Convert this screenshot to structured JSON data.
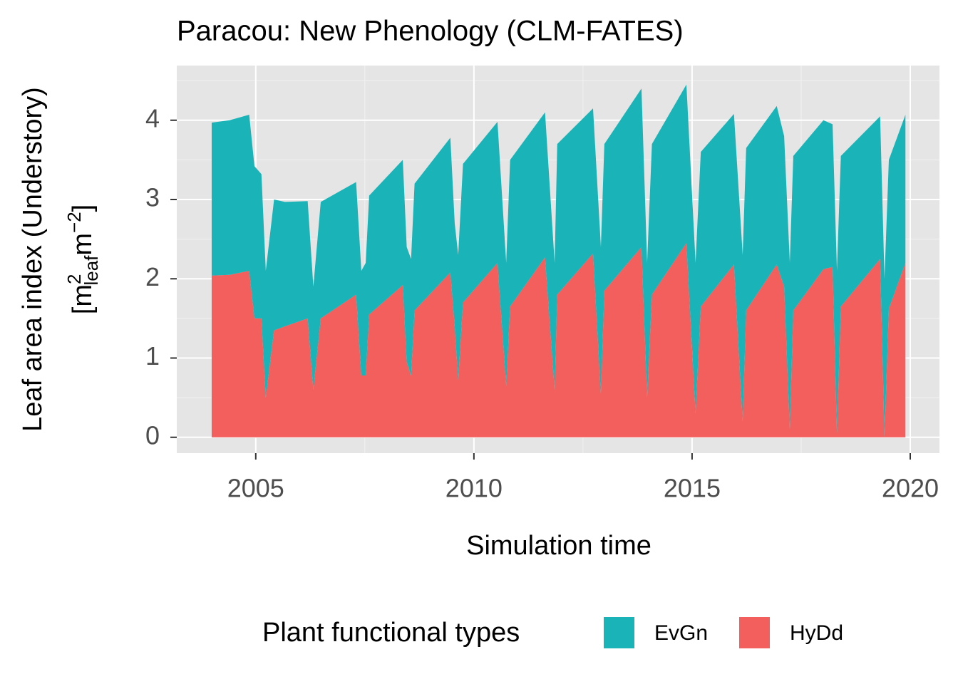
{
  "chart_data": {
    "type": "stacked_area",
    "title": "Paracou: New Phenology (CLM-FATES)",
    "xlabel": "Simulation time",
    "ylabel": "Leaf area index (Understory)",
    "ylabel_units": [
      "[m",
      "2",
      "leaf",
      "m",
      "−2",
      "]"
    ],
    "legend_title": "Plant functional types",
    "legend": "bottom",
    "grid": true,
    "xlim": [
      2003.19,
      2020.67
    ],
    "xticks": [
      2005,
      2010,
      2015,
      2020
    ],
    "xminorticks": [
      2007.5,
      2012.5,
      2017.5
    ],
    "ylim": [
      -0.2,
      4.69
    ],
    "yticks": [
      0,
      1,
      2,
      3,
      4
    ],
    "yminorticks": [
      0.5,
      1.5,
      2.5,
      3.5,
      4.5
    ],
    "x": [
      2003.99,
      2004.4,
      2004.85,
      2004.97,
      2005.13,
      2005.23,
      2005.42,
      2005.67,
      2006.19,
      2006.32,
      2006.49,
      2007.3,
      2007.42,
      2007.52,
      2007.6,
      2008.37,
      2008.46,
      2008.56,
      2008.64,
      2009.46,
      2009.56,
      2009.64,
      2009.75,
      2010.54,
      2010.74,
      2010.83,
      2011.63,
      2011.85,
      2011.91,
      2012.73,
      2012.91,
      2012.99,
      2013.84,
      2013.97,
      2014.08,
      2014.87,
      2015.08,
      2015.2,
      2015.96,
      2016.16,
      2016.24,
      2016.94,
      2017.11,
      2017.24,
      2017.32,
      2018.01,
      2018.22,
      2018.32,
      2018.41,
      2019.31,
      2019.41,
      2019.51,
      2019.89
    ],
    "series": [
      {
        "name": "HyDd",
        "color": "#f35f5c",
        "values": [
          2.04,
          2.05,
          2.1,
          1.5,
          1.5,
          0.5,
          1.35,
          1.4,
          1.5,
          0.6,
          1.5,
          1.8,
          0.78,
          0.78,
          1.55,
          1.92,
          0.95,
          0.78,
          1.6,
          2.08,
          1.4,
          0.72,
          1.7,
          2.2,
          0.65,
          1.65,
          2.27,
          0.6,
          1.8,
          2.32,
          0.55,
          1.85,
          2.4,
          0.5,
          1.8,
          2.45,
          0.3,
          1.65,
          2.18,
          0.2,
          1.6,
          2.18,
          1.9,
          0.1,
          1.6,
          2.12,
          2.15,
          0.05,
          1.65,
          2.25,
          0.0,
          1.62,
          2.2
        ]
      },
      {
        "name": "EvGn",
        "color": "#1ab3b8",
        "values": [
          1.93,
          1.95,
          1.97,
          1.92,
          1.82,
          1.6,
          1.65,
          1.57,
          1.48,
          1.3,
          1.47,
          1.42,
          1.32,
          1.42,
          1.5,
          1.58,
          1.45,
          1.47,
          1.6,
          1.7,
          1.3,
          1.58,
          1.75,
          1.78,
          1.55,
          1.85,
          1.83,
          1.6,
          1.9,
          1.83,
          1.85,
          1.85,
          2.0,
          1.7,
          1.9,
          2.0,
          1.9,
          1.95,
          1.9,
          2.1,
          2.05,
          2.0,
          1.9,
          2.1,
          1.95,
          1.88,
          1.8,
          2.05,
          1.9,
          1.8,
          2.0,
          1.88,
          1.87
        ]
      }
    ]
  }
}
